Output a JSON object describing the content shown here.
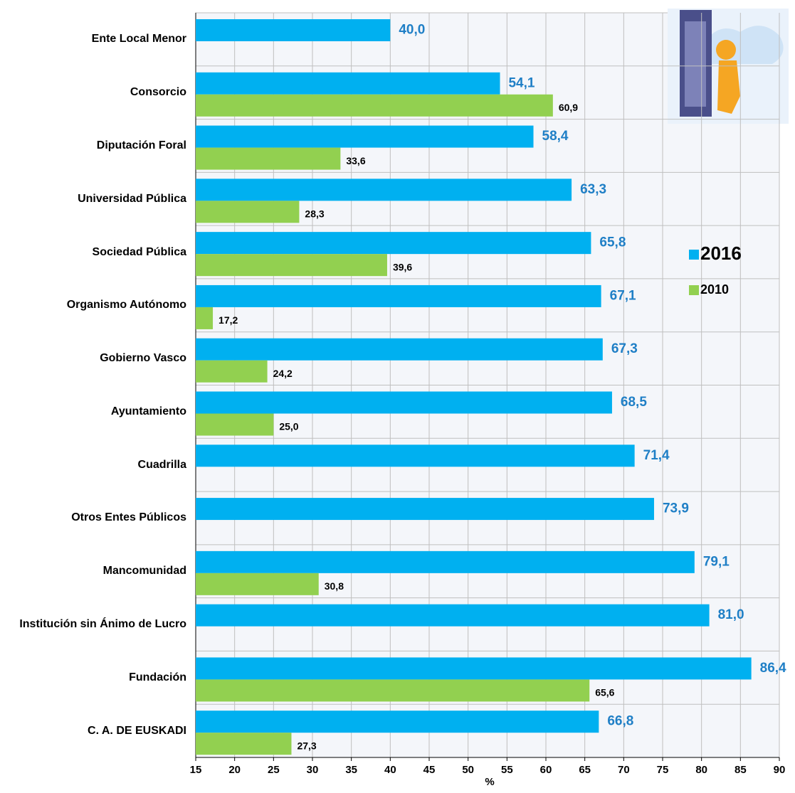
{
  "chart_data": {
    "type": "hbar",
    "x_label": "%",
    "categories": [
      "Ente Local Menor",
      "Consorcio",
      "Diputación Foral",
      "Universidad Pública",
      "Sociedad Pública",
      "Organismo Autónomo",
      "Gobierno Vasco",
      "Ayuntamiento",
      "Cuadrilla",
      "Otros Entes Públicos",
      "Mancomunidad",
      "Institución sin Ánimo de Lucro",
      "Fundación",
      "C. A. DE EUSKADI"
    ],
    "series": [
      {
        "name": "2016",
        "color": "#00b0f0",
        "values": [
          40.0,
          54.1,
          58.4,
          63.3,
          65.8,
          67.1,
          67.3,
          68.5,
          71.4,
          73.9,
          79.1,
          81.0,
          86.4,
          66.8
        ],
        "value_labels": [
          "40,0",
          "54,1",
          "58,4",
          "63,3",
          "65,8",
          "67,1",
          "67,3",
          "68,5",
          "71,4",
          "73,9",
          "79,1",
          "81,0",
          "86,4",
          "66,8"
        ]
      },
      {
        "name": "2010",
        "color": "#92d050",
        "values": [
          null,
          60.9,
          33.6,
          28.3,
          39.6,
          17.2,
          24.2,
          25.0,
          null,
          null,
          30.8,
          null,
          65.6,
          27.3
        ],
        "value_labels": [
          null,
          "60,9",
          "33,6",
          "28,3",
          "39,6",
          "17,2",
          "24,2",
          "25,0",
          null,
          null,
          "30,8",
          null,
          "65,6",
          "27,3"
        ]
      }
    ],
    "xlim": [
      15,
      90
    ],
    "xticks": [
      15,
      20,
      25,
      30,
      35,
      40,
      45,
      50,
      55,
      60,
      65,
      70,
      75,
      80,
      85,
      90
    ],
    "grid": true
  }
}
